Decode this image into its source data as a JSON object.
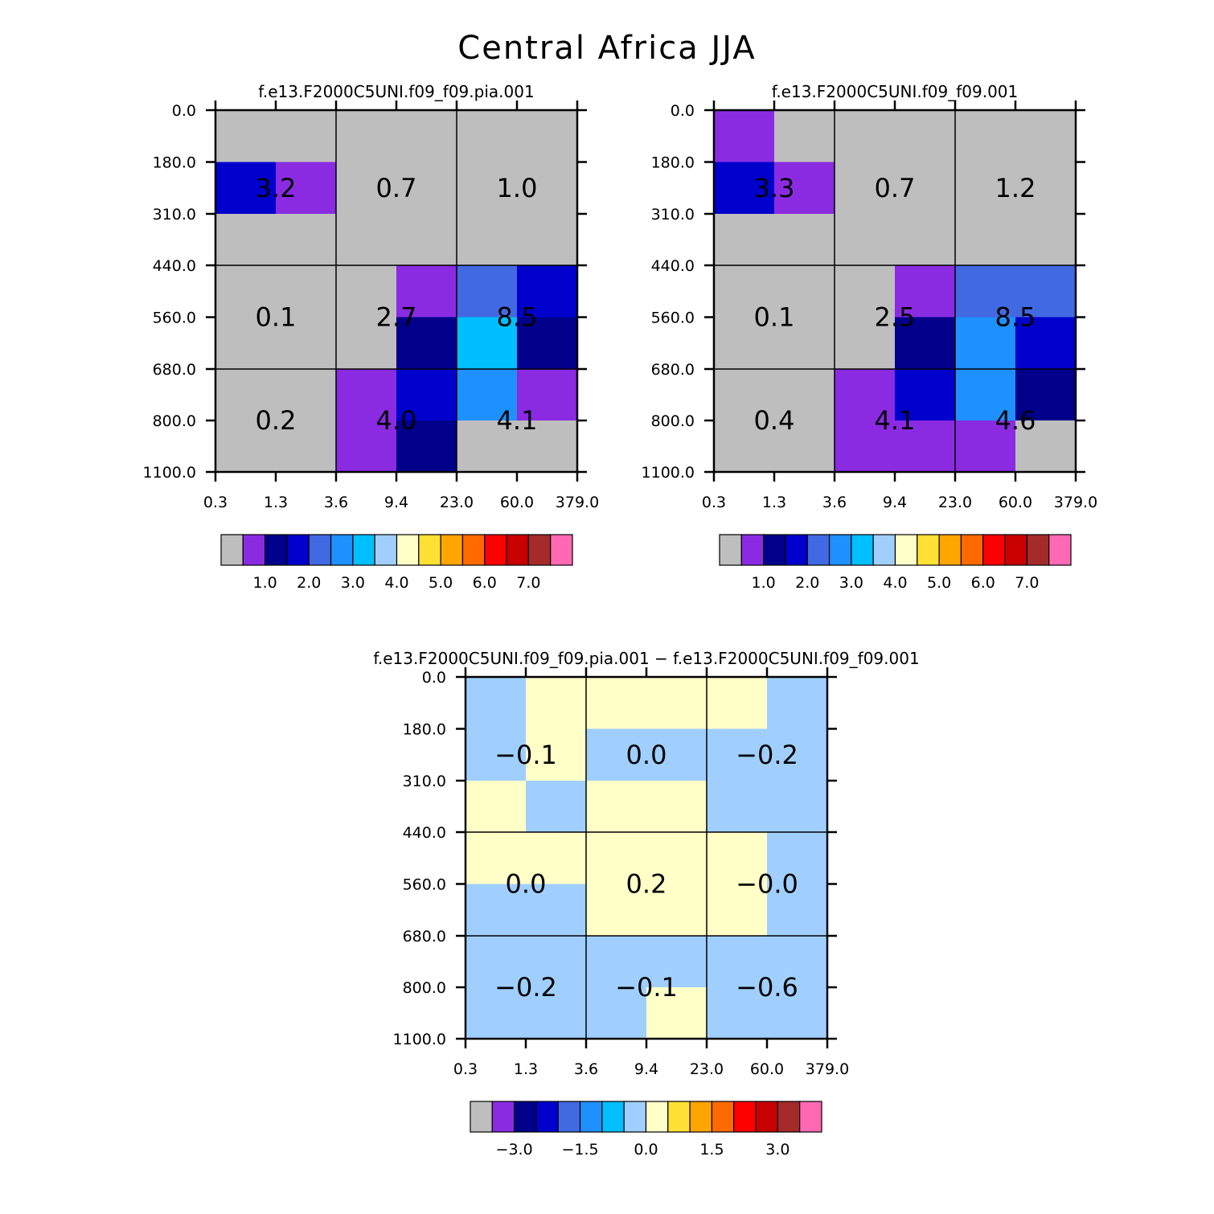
{
  "title": "Central Africa JJA",
  "chart_data": [
    {
      "type": "heatmap",
      "title": "f.e13.F2000C5UNI.f09_f09.pia.001",
      "x_ticks": [
        "0.3",
        "1.3",
        "3.6",
        "9.4",
        "23.0",
        "60.0",
        "379.0"
      ],
      "y_ticks": [
        "0.0",
        "180.0",
        "310.0",
        "440.0",
        "560.0",
        "680.0",
        "800.0",
        "1100.0"
      ],
      "cell_colors": [
        [
          "#BEBEBE",
          "#BEBEBE",
          "#BEBEBE",
          "#BEBEBE",
          "#BEBEBE",
          "#BEBEBE"
        ],
        [
          "#0000CD",
          "#8A2BE2",
          "#BEBEBE",
          "#BEBEBE",
          "#BEBEBE",
          "#BEBEBE"
        ],
        [
          "#BEBEBE",
          "#BEBEBE",
          "#BEBEBE",
          "#BEBEBE",
          "#BEBEBE",
          "#BEBEBE"
        ],
        [
          "#BEBEBE",
          "#BEBEBE",
          "#BEBEBE",
          "#8A2BE2",
          "#4169E1",
          "#0000CD"
        ],
        [
          "#BEBEBE",
          "#BEBEBE",
          "#BEBEBE",
          "#00008B",
          "#00BFFF",
          "#00008B"
        ],
        [
          "#BEBEBE",
          "#BEBEBE",
          "#8A2BE2",
          "#0000CD",
          "#1E90FF",
          "#8A2BE2"
        ],
        [
          "#BEBEBE",
          "#BEBEBE",
          "#8A2BE2",
          "#00008B",
          "#BEBEBE",
          "#BEBEBE"
        ]
      ],
      "box_values": [
        [
          "3.2",
          "0.7",
          "1.0"
        ],
        [
          "0.1",
          "2.7",
          "8.5"
        ],
        [
          "0.2",
          "4.0",
          "4.1"
        ]
      ],
      "colorbar": {
        "colors": [
          "#BEBEBE",
          "#8A2BE2",
          "#00008B",
          "#0000CD",
          "#4169E1",
          "#1E90FF",
          "#00BFFF",
          "#A0CFFF",
          "#FFFFC8",
          "#FFE135",
          "#FFA500",
          "#FF6A00",
          "#FF0000",
          "#C80000",
          "#A52A2A",
          "#FF69B4"
        ],
        "labels": [
          "1.0",
          "2.0",
          "3.0",
          "4.0",
          "5.0",
          "6.0",
          "7.0"
        ],
        "label_after_box": [
          1,
          3,
          5,
          7,
          9,
          11,
          13
        ]
      }
    },
    {
      "type": "heatmap",
      "title": "f.e13.F2000C5UNI.f09_f09.001",
      "x_ticks": [
        "0.3",
        "1.3",
        "3.6",
        "9.4",
        "23.0",
        "60.0",
        "379.0"
      ],
      "y_ticks": [
        "0.0",
        "180.0",
        "310.0",
        "440.0",
        "560.0",
        "680.0",
        "800.0",
        "1100.0"
      ],
      "cell_colors": [
        [
          "#8A2BE2",
          "#BEBEBE",
          "#BEBEBE",
          "#BEBEBE",
          "#BEBEBE",
          "#BEBEBE"
        ],
        [
          "#0000CD",
          "#8A2BE2",
          "#BEBEBE",
          "#BEBEBE",
          "#BEBEBE",
          "#BEBEBE"
        ],
        [
          "#BEBEBE",
          "#BEBEBE",
          "#BEBEBE",
          "#BEBEBE",
          "#BEBEBE",
          "#BEBEBE"
        ],
        [
          "#BEBEBE",
          "#BEBEBE",
          "#BEBEBE",
          "#8A2BE2",
          "#4169E1",
          "#4169E1"
        ],
        [
          "#BEBEBE",
          "#BEBEBE",
          "#BEBEBE",
          "#00008B",
          "#1E90FF",
          "#0000CD"
        ],
        [
          "#BEBEBE",
          "#BEBEBE",
          "#8A2BE2",
          "#0000CD",
          "#1E90FF",
          "#00008B"
        ],
        [
          "#BEBEBE",
          "#BEBEBE",
          "#8A2BE2",
          "#8A2BE2",
          "#8A2BE2",
          "#BEBEBE"
        ]
      ],
      "box_values": [
        [
          "3.3",
          "0.7",
          "1.2"
        ],
        [
          "0.1",
          "2.5",
          "8.5"
        ],
        [
          "0.4",
          "4.1",
          "4.6"
        ]
      ],
      "colorbar": {
        "colors": [
          "#BEBEBE",
          "#8A2BE2",
          "#00008B",
          "#0000CD",
          "#4169E1",
          "#1E90FF",
          "#00BFFF",
          "#A0CFFF",
          "#FFFFC8",
          "#FFE135",
          "#FFA500",
          "#FF6A00",
          "#FF0000",
          "#C80000",
          "#A52A2A",
          "#FF69B4"
        ],
        "labels": [
          "1.0",
          "2.0",
          "3.0",
          "4.0",
          "5.0",
          "6.0",
          "7.0"
        ],
        "label_after_box": [
          1,
          3,
          5,
          7,
          9,
          11,
          13
        ]
      }
    },
    {
      "type": "heatmap",
      "title": "f.e13.F2000C5UNI.f09_f09.pia.001 − f.e13.F2000C5UNI.f09_f09.001",
      "x_ticks": [
        "0.3",
        "1.3",
        "3.6",
        "9.4",
        "23.0",
        "60.0",
        "379.0"
      ],
      "y_ticks": [
        "0.0",
        "180.0",
        "310.0",
        "440.0",
        "560.0",
        "680.0",
        "800.0",
        "1100.0"
      ],
      "cell_colors": [
        [
          "#A0CFFF",
          "#FFFFC8",
          "#FFFFC8",
          "#FFFFC8",
          "#FFFFC8",
          "#A0CFFF"
        ],
        [
          "#A0CFFF",
          "#FFFFC8",
          "#A0CFFF",
          "#A0CFFF",
          "#A0CFFF",
          "#A0CFFF"
        ],
        [
          "#FFFFC8",
          "#A0CFFF",
          "#FFFFC8",
          "#FFFFC8",
          "#A0CFFF",
          "#A0CFFF"
        ],
        [
          "#FFFFC8",
          "#FFFFC8",
          "#FFFFC8",
          "#FFFFC8",
          "#FFFFC8",
          "#A0CFFF"
        ],
        [
          "#A0CFFF",
          "#A0CFFF",
          "#FFFFC8",
          "#FFFFC8",
          "#FFFFC8",
          "#A0CFFF"
        ],
        [
          "#A0CFFF",
          "#A0CFFF",
          "#A0CFFF",
          "#A0CFFF",
          "#A0CFFF",
          "#A0CFFF"
        ],
        [
          "#A0CFFF",
          "#A0CFFF",
          "#A0CFFF",
          "#FFFFC8",
          "#A0CFFF",
          "#A0CFFF"
        ]
      ],
      "box_values": [
        [
          "−0.1",
          "0.0",
          "−0.2"
        ],
        [
          "0.0",
          "0.2",
          "−0.0"
        ],
        [
          "−0.2",
          "−0.1",
          "−0.6"
        ]
      ],
      "colorbar": {
        "colors": [
          "#BEBEBE",
          "#8A2BE2",
          "#00008B",
          "#0000CD",
          "#4169E1",
          "#1E90FF",
          "#00BFFF",
          "#A0CFFF",
          "#FFFFC8",
          "#FFE135",
          "#FFA500",
          "#FF6A00",
          "#FF0000",
          "#C80000",
          "#A52A2A",
          "#FF69B4"
        ],
        "labels": [
          "−3.0",
          "−1.5",
          "0.0",
          "1.5",
          "3.0"
        ],
        "label_after_box": [
          1,
          4,
          7,
          10,
          13
        ]
      }
    }
  ]
}
